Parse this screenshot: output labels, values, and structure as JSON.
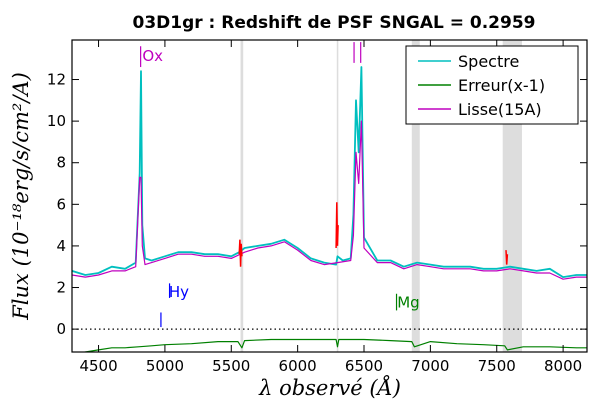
{
  "chart_data": {
    "type": "line",
    "title": "03D1gr : Redshift de PSF SNGAL = 0.2959",
    "xlabel": "λ observé (Å)",
    "ylabel": "Flux (10⁻¹⁸erg/s/cm²/A)",
    "xlim": [
      4300,
      8180
    ],
    "ylim": [
      -1.1,
      13.9
    ],
    "xticks": [
      4500,
      5000,
      5500,
      6000,
      6500,
      7000,
      7500,
      8000
    ],
    "yticks": [
      0,
      2,
      4,
      6,
      8,
      10,
      12
    ],
    "grid": false,
    "legend_position": "top-right",
    "colors": {
      "spectre": "#00bfbf",
      "erreur": "#008000",
      "lisse": "#bf00bf",
      "clipped": "#ff0000",
      "band": "#dddddd",
      "zero_line": "#000000"
    },
    "series": [
      {
        "name": "Spectre",
        "x": [
          4300,
          4400,
          4500,
          4600,
          4700,
          4780,
          4810,
          4820,
          4830,
          4850,
          4900,
          5000,
          5100,
          5200,
          5300,
          5400,
          5500,
          5560,
          5600,
          5700,
          5800,
          5900,
          6000,
          6100,
          6200,
          6290,
          6300,
          6340,
          6400,
          6420,
          6440,
          6460,
          6480,
          6500,
          6600,
          6700,
          6800,
          6900,
          7000,
          7100,
          7200,
          7300,
          7400,
          7500,
          7600,
          7700,
          7800,
          7900,
          8000,
          8100,
          8180
        ],
        "y": [
          2.8,
          2.6,
          2.7,
          3.0,
          2.9,
          3.2,
          7.5,
          12.4,
          5.0,
          3.4,
          3.3,
          3.5,
          3.7,
          3.7,
          3.6,
          3.6,
          3.5,
          3.7,
          3.9,
          4.0,
          4.1,
          4.3,
          3.9,
          3.4,
          3.2,
          3.1,
          3.5,
          3.3,
          3.4,
          5.5,
          11.0,
          8.5,
          12.6,
          4.4,
          3.3,
          3.3,
          3.0,
          3.2,
          3.1,
          3.0,
          3.0,
          3.0,
          2.9,
          2.9,
          3.0,
          2.9,
          2.8,
          2.9,
          2.5,
          2.6,
          2.6
        ]
      },
      {
        "name": "Erreur(x-1)",
        "x": [
          4300,
          4400,
          4500,
          4600,
          4700,
          4800,
          4900,
          5000,
          5200,
          5400,
          5550,
          5580,
          5600,
          5800,
          6000,
          6200,
          6290,
          6300,
          6310,
          6500,
          6700,
          6860,
          6880,
          7000,
          7200,
          7400,
          7560,
          7580,
          7700,
          7900,
          8100,
          8180
        ],
        "y": [
          -1.2,
          -1.1,
          -1.0,
          -0.9,
          -0.9,
          -0.85,
          -0.8,
          -0.75,
          -0.7,
          -0.6,
          -0.6,
          -0.9,
          -0.55,
          -0.5,
          -0.5,
          -0.5,
          -0.5,
          -0.85,
          -0.5,
          -0.5,
          -0.55,
          -0.6,
          -0.85,
          -0.6,
          -0.7,
          -0.75,
          -0.8,
          -1.0,
          -0.85,
          -0.85,
          -0.9,
          -0.9
        ]
      },
      {
        "name": "Lisse(15A)",
        "x": [
          4300,
          4400,
          4500,
          4600,
          4700,
          4780,
          4810,
          4820,
          4830,
          4850,
          4900,
          5000,
          5100,
          5200,
          5300,
          5400,
          5500,
          5600,
          5700,
          5800,
          5900,
          6000,
          6100,
          6200,
          6300,
          6400,
          6420,
          6440,
          6460,
          6480,
          6500,
          6600,
          6700,
          6800,
          6900,
          7000,
          7100,
          7200,
          7300,
          7400,
          7500,
          7600,
          7700,
          7800,
          7900,
          8000,
          8100,
          8180
        ],
        "y": [
          2.6,
          2.5,
          2.6,
          2.8,
          2.8,
          3.0,
          7.3,
          7.3,
          4.0,
          3.1,
          3.2,
          3.4,
          3.6,
          3.6,
          3.5,
          3.5,
          3.4,
          3.7,
          3.9,
          4.0,
          4.2,
          3.8,
          3.3,
          3.1,
          3.2,
          3.3,
          4.5,
          8.5,
          7.0,
          10.0,
          3.9,
          3.2,
          3.2,
          2.9,
          3.1,
          3.0,
          2.9,
          2.9,
          2.9,
          2.8,
          2.8,
          2.9,
          2.8,
          2.7,
          2.7,
          2.4,
          2.5,
          2.5
        ]
      }
    ],
    "clipped_segments": [
      {
        "x": [
          5560,
          5565,
          5570,
          5575,
          5580
        ],
        "y": [
          3.6,
          4.3,
          3.0,
          4.1,
          3.5
        ]
      },
      {
        "x": [
          6290,
          6295,
          6300,
          6305
        ],
        "y": [
          3.9,
          6.1,
          4.0,
          5.0
        ]
      },
      {
        "x": [
          7570,
          7575,
          7580
        ],
        "y": [
          3.8,
          3.1,
          3.6
        ]
      }
    ],
    "shaded_bands": [
      {
        "x0": 5570,
        "x1": 5590
      },
      {
        "x0": 6295,
        "x1": 6305
      },
      {
        "x0": 6860,
        "x1": 6920
      },
      {
        "x0": 7545,
        "x1": 7690
      }
    ],
    "annotations": [
      {
        "label": "Ox",
        "x": 4830,
        "y": 12.9,
        "color": "#bf00bf",
        "marker_x": 4817,
        "marker_y0": 12.6,
        "marker_y1": 13.6
      },
      {
        "label": "",
        "x": 6420,
        "y": 13.0,
        "color": "#bf00bf",
        "marker_x": 6425,
        "marker_y0": 12.8,
        "marker_y1": 13.8
      },
      {
        "label": "",
        "x": 6470,
        "y": 13.0,
        "color": "#bf00bf",
        "marker_x": 6475,
        "marker_y0": 12.8,
        "marker_y1": 13.8
      },
      {
        "label": "Hy",
        "x": 5030,
        "y": 1.55,
        "color": "#0000ff",
        "marker_x": 5035,
        "marker_y0": 1.5,
        "marker_y1": 2.2
      },
      {
        "label": "",
        "x": 4970,
        "y": 0.2,
        "color": "#0000ff",
        "marker_x": 4970,
        "marker_y0": 0.1,
        "marker_y1": 0.8
      },
      {
        "label": "Mg",
        "x": 6750,
        "y": 1.05,
        "color": "#008000",
        "marker_x": 6745,
        "marker_y0": 0.9,
        "marker_y1": 1.7
      }
    ],
    "zero_line": 0
  }
}
